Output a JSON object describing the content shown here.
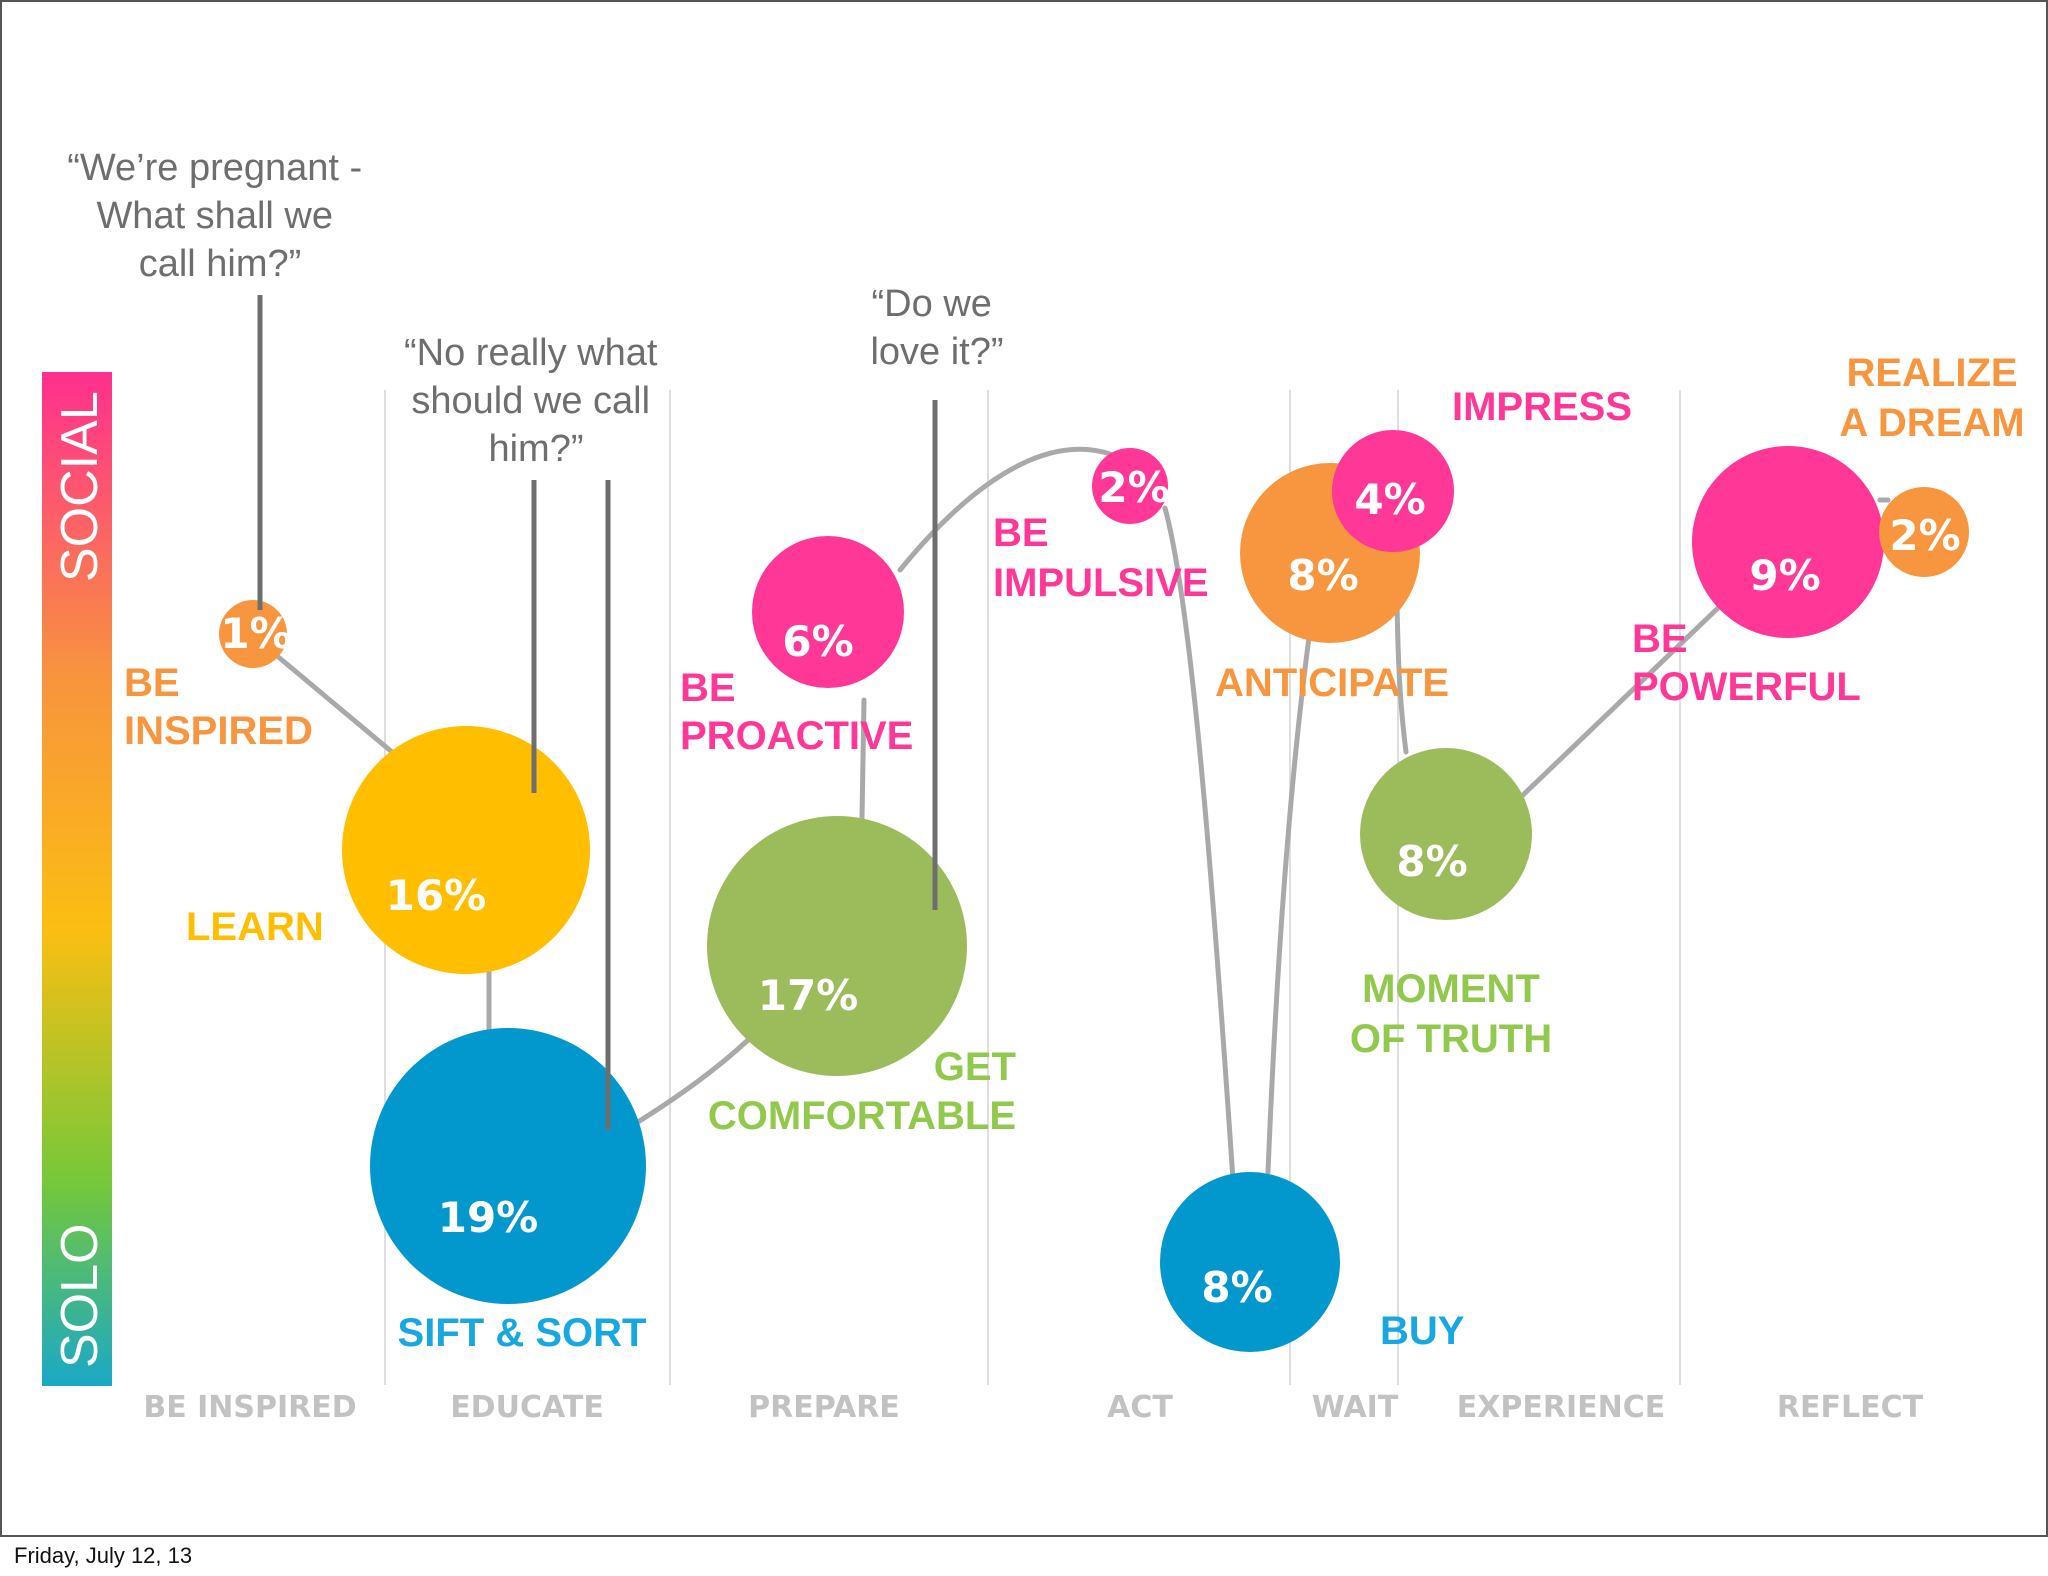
{
  "footer_date": "Friday, July 12, 13",
  "axis": {
    "top": "SOCIAL",
    "bottom": "SOLO"
  },
  "colors": {
    "orange": "#F7963F",
    "yellow": "#FFBE00",
    "blue": "#0298CE",
    "green": "#9CBC5C",
    "pink": "#FF3796",
    "green_label": "#90C94B",
    "blue_label": "#17A7E1",
    "quote_gray": "#6E6E6E",
    "phase_gray": "#C2C2C2"
  },
  "phases": [
    "BE INSPIRED",
    "EDUCATE",
    "PREPARE",
    "ACT",
    "WAIT",
    "EXPERIENCE",
    "REFLECT"
  ],
  "quotes": {
    "pregnant": [
      "“We’re pregnant -",
      "What shall we",
      "call him?”"
    ],
    "no_really": [
      "“No really what",
      "should we call",
      "him?”"
    ],
    "love_it": [
      "“Do we",
      "love it?”"
    ]
  },
  "bubbles": [
    {
      "id": "be-inspired",
      "pct": "1%",
      "color": "orange",
      "label": [
        "BE",
        "INSPIRED"
      ]
    },
    {
      "id": "learn",
      "pct": "16%",
      "color": "yellow",
      "label": [
        "LEARN"
      ]
    },
    {
      "id": "sift-sort",
      "pct": "19%",
      "color": "blue",
      "label": [
        "SIFT & SORT"
      ]
    },
    {
      "id": "get-comfortable",
      "pct": "17%",
      "color": "green",
      "label": [
        "GET",
        "COMFORTABLE"
      ]
    },
    {
      "id": "be-proactive",
      "pct": "6%",
      "color": "pink",
      "label": [
        "BE",
        "PROACTIVE"
      ]
    },
    {
      "id": "be-impulsive",
      "pct": "2%",
      "color": "pink",
      "label": [
        "BE",
        "IMPULSIVE"
      ]
    },
    {
      "id": "buy",
      "pct": "8%",
      "color": "blue",
      "label": [
        "BUY"
      ]
    },
    {
      "id": "anticipate",
      "pct": "8%",
      "color": "orange",
      "label": [
        "ANTICIPATE"
      ]
    },
    {
      "id": "impress",
      "pct": "4%",
      "color": "pink",
      "label": [
        "IMPRESS"
      ]
    },
    {
      "id": "moment-of-truth",
      "pct": "8%",
      "color": "green",
      "label": [
        "MOMENT",
        "OF TRUTH"
      ]
    },
    {
      "id": "be-powerful",
      "pct": "9%",
      "color": "pink",
      "label": [
        "BE",
        "POWERFUL"
      ]
    },
    {
      "id": "realize-a-dream",
      "pct": "2%",
      "color": "orange",
      "label": [
        "REALIZE",
        "A DREAM"
      ]
    }
  ]
}
